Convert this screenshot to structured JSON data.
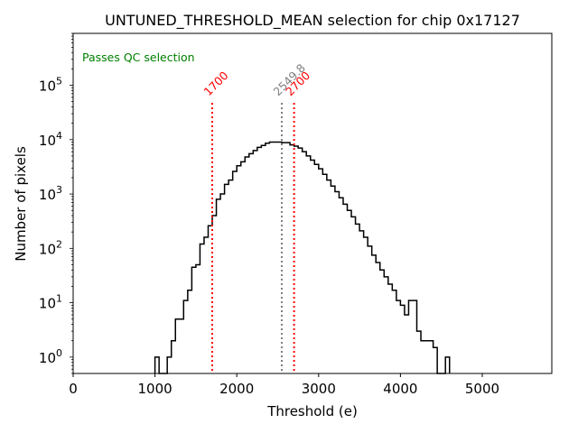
{
  "chart_data": {
    "type": "histogram-step",
    "title": "UNTUNED_THRESHOLD_MEAN selection for chip 0x17127",
    "xlabel": "Threshold (e)",
    "ylabel": "Number of pixels",
    "xlim": [
      0,
      5850
    ],
    "ylim": [
      0.5,
      900000
    ],
    "yscale": "log",
    "xticks": [
      0,
      1000,
      2000,
      3000,
      4000,
      5000
    ],
    "xtick_labels": [
      "0",
      "1000",
      "2000",
      "3000",
      "4000",
      "5000"
    ],
    "yticks": [
      1,
      10,
      100,
      1000,
      10000,
      100000
    ],
    "ytick_labels": [
      {
        "base": "10",
        "exp": "0"
      },
      {
        "base": "10",
        "exp": "1"
      },
      {
        "base": "10",
        "exp": "2"
      },
      {
        "base": "10",
        "exp": "3"
      },
      {
        "base": "10",
        "exp": "4"
      },
      {
        "base": "10",
        "exp": "5"
      }
    ],
    "bin_width": 50,
    "bin_start": 1000,
    "counts": [
      1,
      0,
      0,
      1,
      2,
      5,
      5,
      11,
      17,
      45,
      50,
      120,
      160,
      260,
      400,
      800,
      1000,
      1500,
      1800,
      2600,
      3300,
      3900,
      4800,
      5500,
      6300,
      7200,
      7800,
      8600,
      9000,
      9000,
      9000,
      8800,
      8800,
      8000,
      7600,
      7000,
      6000,
      5000,
      4200,
      3500,
      2900,
      2300,
      1800,
      1400,
      1100,
      850,
      650,
      500,
      380,
      280,
      210,
      160,
      110,
      75,
      55,
      40,
      30,
      22,
      17,
      11,
      9,
      6,
      11,
      11,
      3,
      2,
      2,
      2,
      1.5,
      0,
      0,
      1
    ],
    "vlines": [
      {
        "x": 1700,
        "label": "1700",
        "color": "#ff0000",
        "style": "dotted"
      },
      {
        "x": 2549.8,
        "label": "2549.8",
        "color": "#808080",
        "style": "dotted"
      },
      {
        "x": 2700,
        "label": "2700",
        "color": "#ff0000",
        "style": "dotted"
      }
    ],
    "annotations": [
      {
        "text": "Passes QC selection",
        "color": "#008000",
        "position": "top-left"
      }
    ],
    "grid": false,
    "line_color": "#000000"
  }
}
